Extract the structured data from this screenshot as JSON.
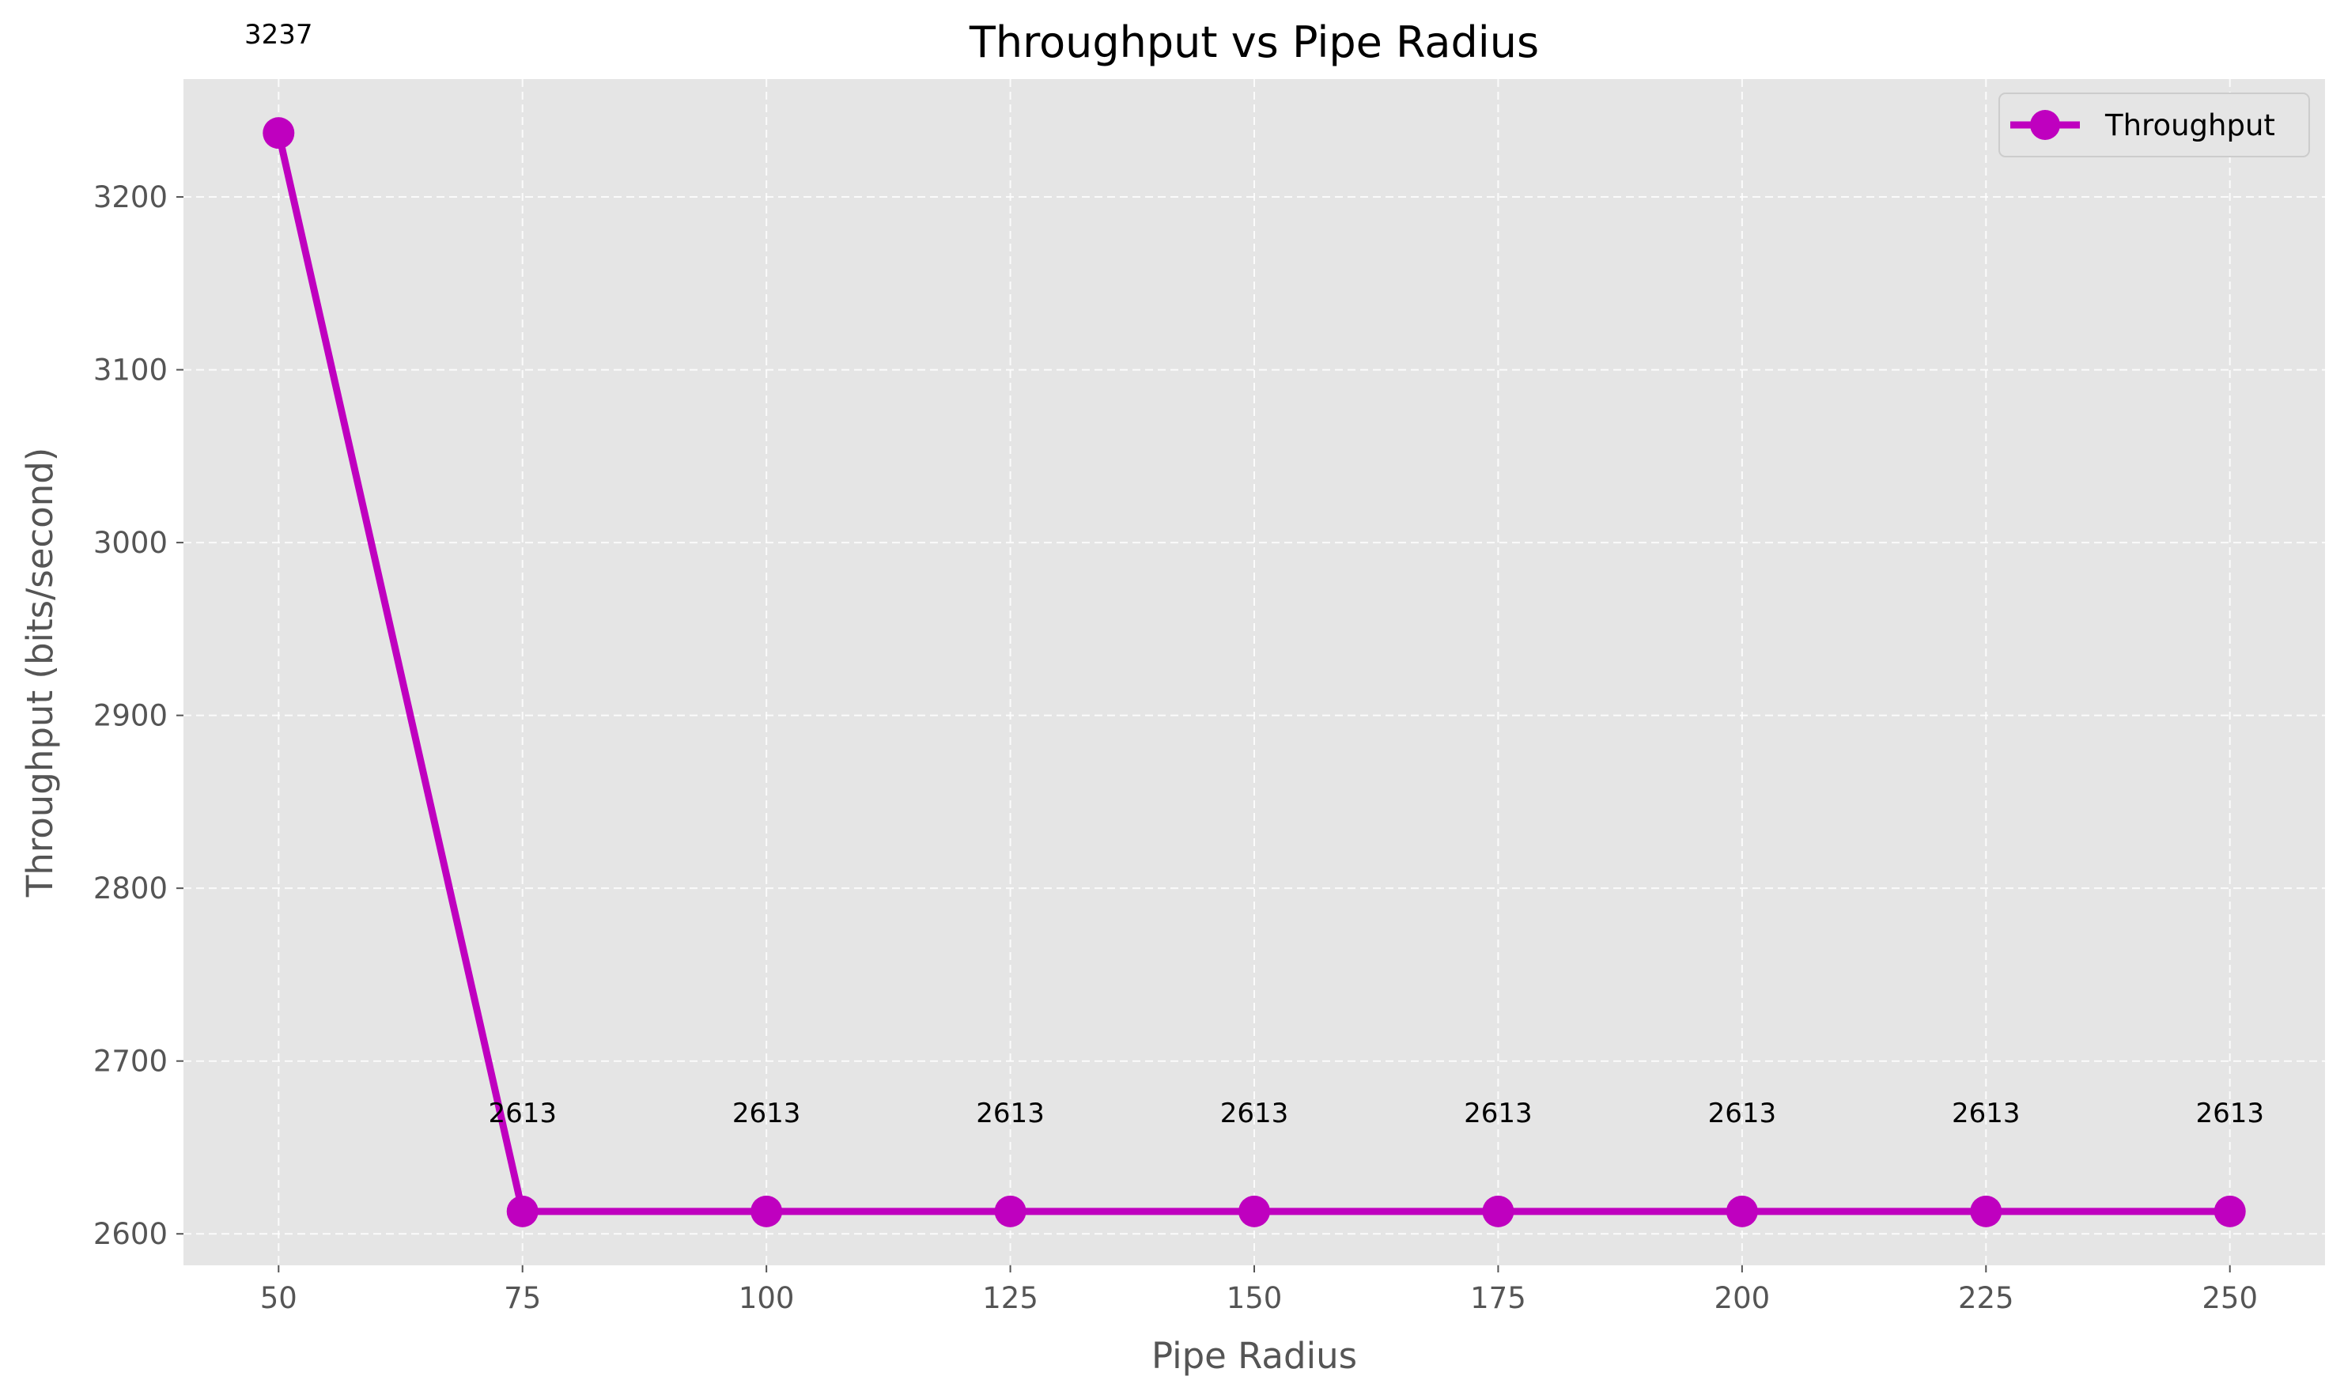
{
  "chart_data": {
    "type": "line",
    "title": "Throughput vs Pipe Radius",
    "xlabel": "Pipe Radius",
    "ylabel": "Throughput (bits/second)",
    "x": [
      50,
      75,
      100,
      125,
      150,
      175,
      200,
      225,
      250
    ],
    "series": [
      {
        "name": "Throughput",
        "values": [
          3237,
          2613,
          2613,
          2613,
          2613,
          2613,
          2613,
          2613,
          2613
        ],
        "data_labels": [
          "3237",
          "2613",
          "2613",
          "2613",
          "2613",
          "2613",
          "2613",
          "2613",
          "2613"
        ]
      }
    ],
    "xticks": [
      "50",
      "75",
      "100",
      "125",
      "150",
      "175",
      "200",
      "225",
      "250"
    ],
    "yticks": [
      "2600",
      "2700",
      "2800",
      "2900",
      "3000",
      "3100",
      "3200"
    ],
    "xlim": [
      40.25,
      259.75
    ],
    "ylim": [
      2581.8,
      3268.2
    ],
    "grid": true,
    "legend_position": "top-right",
    "colors": {
      "series": "#bf00bf",
      "plot_background": "#e5e5e5",
      "ylabel": "#bf00bf"
    }
  }
}
